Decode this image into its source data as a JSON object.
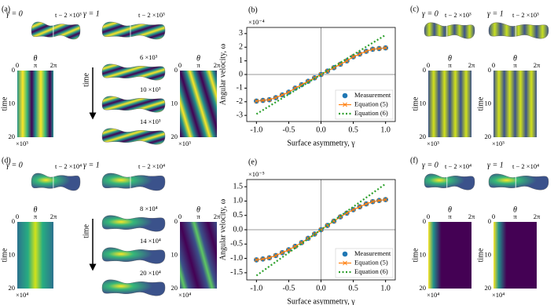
{
  "chart_data": [
    {
      "type": "line",
      "panel_label": "(b)",
      "xlabel": "Surface asymmetry, γ",
      "ylabel": "Angular velocity, ω",
      "y_multiplier": "×10⁻⁴",
      "x": [
        -1.0,
        -0.9,
        -0.8,
        -0.7,
        -0.6,
        -0.5,
        -0.4,
        -0.3,
        -0.2,
        -0.1,
        0.0,
        0.1,
        0.2,
        0.3,
        0.4,
        0.5,
        0.6,
        0.7,
        0.8,
        0.9,
        1.0
      ],
      "series": [
        {
          "name": "Measurement",
          "color": "#1f77b4",
          "marker": "circle",
          "linestyle": "none",
          "values": [
            -1.95,
            -1.9,
            -1.85,
            -1.7,
            -1.5,
            -1.3,
            -1.0,
            -0.75,
            -0.5,
            -0.25,
            0,
            0.25,
            0.5,
            0.75,
            1.0,
            1.3,
            1.5,
            1.7,
            1.85,
            1.9,
            1.95
          ]
        },
        {
          "name": "Equation (5)",
          "color": "#ff7f0e",
          "marker": "x",
          "linestyle": "solid",
          "values": [
            -1.95,
            -1.9,
            -1.85,
            -1.7,
            -1.5,
            -1.3,
            -1.0,
            -0.75,
            -0.5,
            -0.25,
            0,
            0.25,
            0.5,
            0.75,
            1.0,
            1.3,
            1.5,
            1.7,
            1.85,
            1.9,
            1.95
          ]
        },
        {
          "name": "Equation (6)",
          "color": "#2ca02c",
          "marker": null,
          "linestyle": "dotted",
          "values": [
            -2.9,
            -2.61,
            -2.32,
            -2.03,
            -1.74,
            -1.45,
            -1.16,
            -0.87,
            -0.58,
            -0.29,
            0,
            0.29,
            0.58,
            0.87,
            1.16,
            1.45,
            1.74,
            2.03,
            2.32,
            2.61,
            2.9
          ]
        }
      ],
      "xlim": [
        -1.15,
        1.15
      ],
      "ylim": [
        -3.45,
        3.45
      ],
      "xticks": [
        {
          "value": -1.0,
          "label": "-1.0"
        },
        {
          "value": -0.5,
          "label": "-0.5"
        },
        {
          "value": 0.0,
          "label": "0.0"
        },
        {
          "value": 0.5,
          "label": "0.5"
        },
        {
          "value": 1.0,
          "label": "1.0"
        }
      ],
      "yticks": [
        -3,
        -2,
        -1,
        0,
        1,
        2,
        3
      ],
      "zero_lines": true,
      "legend": "lower right"
    },
    {
      "type": "line",
      "panel_label": "(e)",
      "xlabel": "Surface asymmetry, γ",
      "ylabel": "Angular velocity, ω",
      "y_multiplier": "×10⁻⁵",
      "x": [
        -1.0,
        -0.9,
        -0.8,
        -0.7,
        -0.6,
        -0.5,
        -0.4,
        -0.3,
        -0.2,
        -0.1,
        0.0,
        0.1,
        0.2,
        0.3,
        0.4,
        0.5,
        0.6,
        0.7,
        0.8,
        0.9,
        1.0
      ],
      "series": [
        {
          "name": "Measurement",
          "color": "#1f77b4",
          "marker": "circle",
          "linestyle": "none",
          "values": [
            -1.05,
            -1.02,
            -0.98,
            -0.9,
            -0.8,
            -0.7,
            -0.58,
            -0.45,
            -0.3,
            -0.15,
            0,
            0.15,
            0.3,
            0.45,
            0.58,
            0.7,
            0.8,
            0.9,
            0.98,
            1.02,
            1.05
          ]
        },
        {
          "name": "Equation (5)",
          "color": "#ff7f0e",
          "marker": "x",
          "linestyle": "solid",
          "values": [
            -1.05,
            -1.02,
            -0.98,
            -0.9,
            -0.8,
            -0.7,
            -0.58,
            -0.45,
            -0.3,
            -0.15,
            0,
            0.15,
            0.3,
            0.45,
            0.58,
            0.7,
            0.8,
            0.9,
            0.98,
            1.02,
            1.05
          ]
        },
        {
          "name": "Equation (6)",
          "color": "#2ca02c",
          "marker": null,
          "linestyle": "dotted",
          "values": [
            -1.6,
            -1.44,
            -1.28,
            -1.12,
            -0.96,
            -0.8,
            -0.64,
            -0.48,
            -0.32,
            -0.16,
            0,
            0.16,
            0.32,
            0.48,
            0.64,
            0.8,
            0.96,
            1.12,
            1.28,
            1.44,
            1.6
          ]
        }
      ],
      "xlim": [
        -1.15,
        1.15
      ],
      "ylim": [
        -1.75,
        1.75
      ],
      "xticks": [
        {
          "value": -1.0,
          "label": "-1.0"
        },
        {
          "value": -0.5,
          "label": "-0.5"
        },
        {
          "value": 0.0,
          "label": "0.0"
        },
        {
          "value": 0.5,
          "label": "0.5"
        },
        {
          "value": 1.0,
          "label": "1.0"
        }
      ],
      "yticks": [
        -1.5,
        {
          "value": -1.0,
          "label": "-1.0"
        },
        -0.5,
        {
          "value": 0.0,
          "label": "0.0"
        },
        0.5,
        {
          "value": 1.0,
          "label": "1.0"
        },
        1.5
      ],
      "zero_lines": true,
      "legend": "lower right"
    }
  ],
  "panels": {
    "a": {
      "label": "(a)",
      "gamma0": "γ = 0",
      "gamma1": "γ = 1",
      "t0": "t − 2 ×10³",
      "t1": "t − 2 ×10³",
      "snapshots": [
        "6 ×10³",
        "10 ×10³",
        "14 ×10³"
      ],
      "arrow": "time",
      "theta": "θ",
      "theta_ticks": [
        "0",
        "π",
        "2π"
      ],
      "time": "time",
      "time_ticks": [
        "0",
        "10",
        "20"
      ],
      "multiplier": "×10³"
    },
    "c": {
      "label": "(c)",
      "gamma0": "γ = 0",
      "gamma1": "γ = 1",
      "t0": "t − 2 ×10³",
      "t1": "t − 2 ×10³",
      "theta": "θ",
      "theta_ticks": [
        "0",
        "π",
        "2π"
      ],
      "time": "time",
      "time_ticks": [
        "0",
        "10",
        "20"
      ],
      "multiplier": "×10³"
    },
    "d": {
      "label": "(d)",
      "gamma0": "γ = 0",
      "gamma1": "γ = 1",
      "t0": "t − 2 ×10⁴",
      "t1": "t − 2 ×10⁴",
      "snapshots": [
        "8 ×10⁴",
        "14 ×10⁴",
        "20 ×10⁴"
      ],
      "arrow": "time",
      "theta": "θ",
      "theta_ticks": [
        "0",
        "π",
        "2π"
      ],
      "time": "time",
      "time_ticks": [
        "0",
        "10",
        "20"
      ],
      "multiplier": "×10⁴"
    },
    "f": {
      "label": "(f)",
      "gamma0": "γ = 0",
      "gamma1": "γ = 1",
      "t0": "t − 2 ×10⁴",
      "t1": "t − 2 ×10⁴",
      "theta": "θ",
      "theta_ticks": [
        "0",
        "π",
        "2π"
      ],
      "time": "time",
      "time_ticks": [
        "0",
        "10",
        "20"
      ],
      "multiplier": "×10⁴"
    }
  }
}
